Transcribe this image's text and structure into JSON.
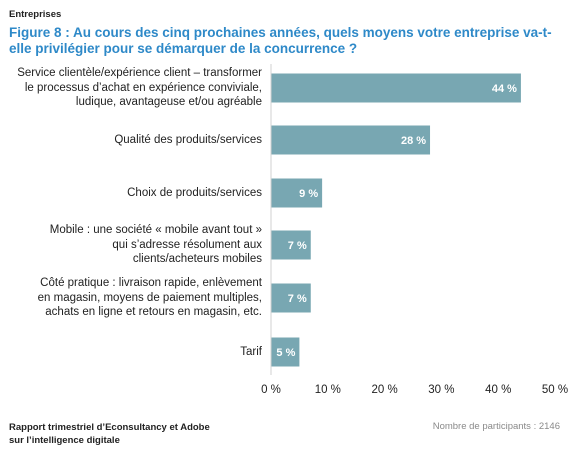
{
  "header": {
    "section": "Entreprises",
    "title": "Figure 8 : Au cours des cinq prochaines années, quels moyens votre entreprise va-t-elle privilégier pour se démarquer de la concurrence ?"
  },
  "chart_data": {
    "type": "bar",
    "orientation": "horizontal",
    "categories": [
      "Service clientèle/expérience client – transformer le processus d’achat en expérience conviviale, ludique, avantageuse et/ou agréable",
      "Qualité des produits/services",
      "Choix de produits/services",
      "Mobile : une société « mobile avant tout » qui s’adresse résolument aux clients/acheteurs mobiles",
      "Côté pratique : livraison rapide, enlèvement en magasin, moyens de paiement multiples, achats en ligne et retours en magasin, etc.",
      "Tarif"
    ],
    "category_lines": [
      [
        "Service clientèle/expérience client – transformer",
        "le processus d’achat en expérience conviviale,",
        "ludique, avantageuse et/ou agréable"
      ],
      [
        "Qualité des produits/services"
      ],
      [
        "Choix de produits/services"
      ],
      [
        "Mobile : une société « mobile avant tout »",
        "qui s’adresse résolument aux",
        "clients/acheteurs mobiles"
      ],
      [
        "Côté pratique : livraison rapide, enlèvement",
        "en magasin, moyens de paiement multiples,",
        "achats en ligne et retours en magasin, etc."
      ],
      [
        "Tarif"
      ]
    ],
    "values": [
      44,
      28,
      9,
      7,
      7,
      5
    ],
    "value_labels": [
      "44 %",
      "28 %",
      "9 %",
      "7 %",
      "7 %",
      "5 %"
    ],
    "xlim": [
      0,
      50
    ],
    "xticks": [
      0,
      10,
      20,
      30,
      40,
      50
    ],
    "xtick_labels": [
      "0 %",
      "10 %",
      "20 %",
      "30 %",
      "40 %",
      "50 %"
    ],
    "grid": false,
    "bar_color": "#78a7b2",
    "label_color": "#ffffff"
  },
  "footer": {
    "source_line1": "Rapport trimestriel d’Econsultancy et Adobe",
    "source_line2": "sur l’intelligence digitale",
    "participants": "Nombre de participants : 2146"
  },
  "colors": {
    "title": "#2e89c8",
    "bar": "#78a7b2",
    "text": "#222222",
    "muted": "#8a8a8a"
  }
}
